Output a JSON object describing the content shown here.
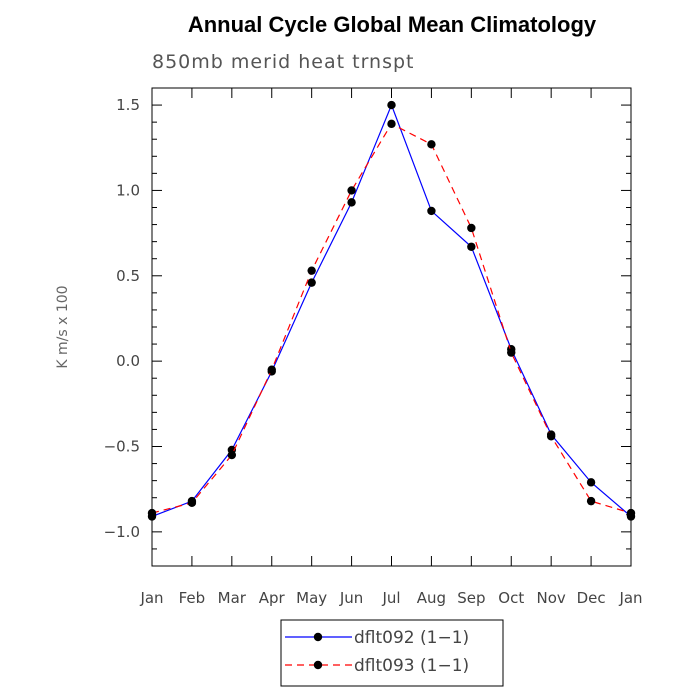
{
  "chart_data": {
    "type": "line",
    "title": "Annual Cycle Global Mean Climatology",
    "subtitle": "850mb merid heat trnspt",
    "xlabel": "",
    "ylabel": "K m/s x 100",
    "categories": [
      "Jan",
      "Feb",
      "Mar",
      "Apr",
      "May",
      "Jun",
      "Jul",
      "Aug",
      "Sep",
      "Oct",
      "Nov",
      "Dec",
      "Jan"
    ],
    "yticks": [
      1.5,
      1.0,
      0.5,
      0.0,
      -0.5,
      -1.0
    ],
    "ytick_labels": [
      "1.5",
      "1.0",
      "0.5",
      "0.0",
      "−0.5",
      "−1.0"
    ],
    "ylim": [
      -1.2,
      1.6
    ],
    "grid": false,
    "legend_position": "bottom",
    "series": [
      {
        "name": "dflt092 (1−1)",
        "color": "#0000ff",
        "dash": "solid",
        "marker": "filled-circle",
        "values": [
          -0.91,
          -0.82,
          -0.52,
          -0.06,
          0.46,
          0.93,
          1.5,
          0.88,
          0.67,
          0.07,
          -0.43,
          -0.71,
          -0.91
        ]
      },
      {
        "name": "dflt093 (1−1)",
        "color": "#ff0000",
        "dash": "dashed",
        "marker": "filled-circle",
        "values": [
          -0.89,
          -0.83,
          -0.55,
          -0.05,
          0.53,
          1.0,
          1.39,
          1.27,
          0.78,
          0.05,
          -0.44,
          -0.82,
          -0.89
        ]
      }
    ]
  }
}
